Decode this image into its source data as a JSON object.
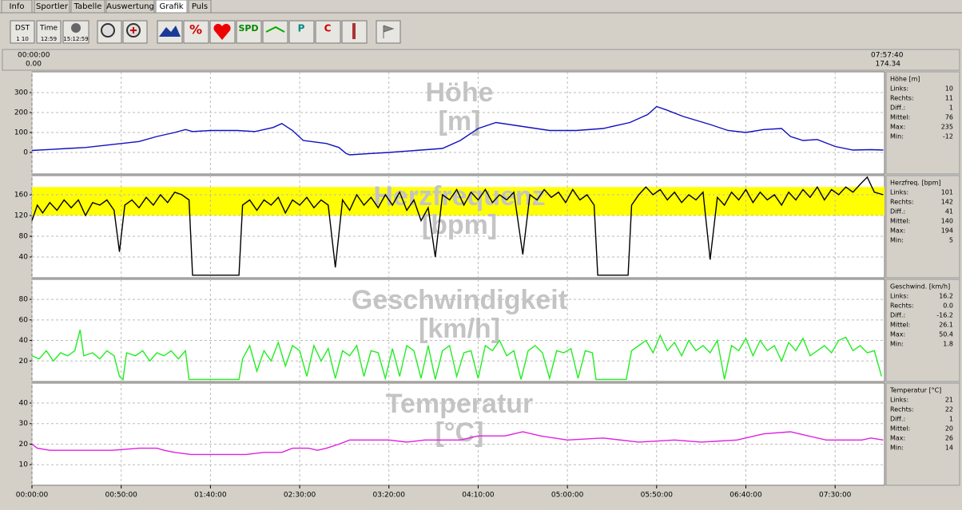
{
  "tabs": [
    "Info",
    "Sportler",
    "Tabelle",
    "Auswertung",
    "Grafik",
    "Puls"
  ],
  "toolbar": {
    "dst": "DST",
    "dst_sub": "1  10",
    "time": "Time",
    "time_sub": "12:59",
    "clock_sub": "15:12:59",
    "percent": "%",
    "spd": "SPD",
    "p": "P",
    "c": "C"
  },
  "range": {
    "start_time": "00:00:00",
    "start_value": "0.00",
    "end_time": "07:57:40",
    "end_value": "174.34"
  },
  "x_axis": {
    "xlim": [
      0,
      477.67
    ],
    "xticks": [
      {
        "value": 0,
        "label": "00:00:00"
      },
      {
        "value": 50,
        "label": "00:50:00"
      },
      {
        "value": 100,
        "label": "01:40:00"
      },
      {
        "value": 150,
        "label": "02:30:00"
      },
      {
        "value": 200,
        "label": "03:20:00"
      },
      {
        "value": 250,
        "label": "04:10:00"
      },
      {
        "value": 300,
        "label": "05:00:00"
      },
      {
        "value": 350,
        "label": "05:50:00"
      },
      {
        "value": 400,
        "label": "06:40:00"
      },
      {
        "value": 450,
        "label": "07:30:00"
      }
    ]
  },
  "chart_data": [
    {
      "type": "line",
      "title": "Höhe",
      "unit": "[m]",
      "color": "#1010c0",
      "grid": true,
      "ylim": [
        -108,
        404
      ],
      "yticks": [
        0,
        100,
        200,
        300
      ],
      "x": [
        0,
        10,
        20,
        30,
        40,
        50,
        60,
        70,
        80,
        86,
        90,
        100,
        115,
        125,
        135,
        140,
        146,
        152,
        165,
        172,
        176,
        178,
        190,
        200,
        215,
        230,
        240,
        250,
        260,
        275,
        290,
        305,
        320,
        335,
        345,
        350,
        355,
        365,
        380,
        390,
        400,
        410,
        420,
        425,
        432,
        440,
        450,
        460,
        470,
        477
      ],
      "values": [
        10,
        15,
        20,
        25,
        35,
        45,
        55,
        80,
        100,
        115,
        105,
        110,
        110,
        105,
        125,
        145,
        110,
        60,
        45,
        25,
        -5,
        -12,
        -5,
        0,
        10,
        20,
        60,
        120,
        150,
        130,
        110,
        110,
        120,
        150,
        190,
        230,
        215,
        180,
        140,
        110,
        100,
        115,
        120,
        80,
        60,
        65,
        30,
        12,
        14,
        12
      ],
      "stats": {
        "header": "Höhe [m]",
        "rows": [
          [
            "Links:",
            "10"
          ],
          [
            "Rechts:",
            "11"
          ],
          [
            "Diff.:",
            "1"
          ],
          [
            "Mittel:",
            "76"
          ],
          [
            "Max:",
            "235"
          ],
          [
            "Min:",
            "-12"
          ]
        ]
      }
    },
    {
      "type": "line",
      "title": "Herzfrequenz",
      "unit": "[bpm]",
      "color": "#000000",
      "grid": true,
      "ylim": [
        0,
        197
      ],
      "yticks": [
        40,
        80,
        120,
        160
      ],
      "band": {
        "range": [
          120,
          175
        ],
        "color": "#ffff00"
      },
      "x": [
        0,
        3,
        6,
        10,
        14,
        18,
        22,
        26,
        30,
        34,
        38,
        42,
        46,
        49,
        52,
        56,
        60,
        64,
        68,
        72,
        76,
        80,
        84,
        88,
        90,
        116,
        118,
        122,
        126,
        130,
        134,
        138,
        142,
        146,
        150,
        154,
        158,
        162,
        166,
        170,
        174,
        178,
        182,
        186,
        190,
        194,
        198,
        202,
        206,
        210,
        214,
        218,
        222,
        226,
        230,
        234,
        238,
        242,
        246,
        250,
        254,
        258,
        262,
        266,
        270,
        275,
        279,
        283,
        287,
        291,
        295,
        299,
        303,
        307,
        311,
        315,
        317,
        334,
        336,
        340,
        344,
        348,
        352,
        356,
        360,
        364,
        368,
        372,
        376,
        380,
        384,
        388,
        392,
        396,
        400,
        404,
        408,
        412,
        416,
        420,
        424,
        428,
        432,
        436,
        440,
        444,
        448,
        452,
        456,
        460,
        464,
        468,
        472,
        477
      ],
      "values": [
        110,
        140,
        125,
        145,
        130,
        150,
        135,
        150,
        120,
        145,
        140,
        150,
        130,
        50,
        140,
        150,
        135,
        155,
        140,
        160,
        145,
        165,
        160,
        150,
        5,
        5,
        140,
        150,
        130,
        150,
        140,
        155,
        125,
        150,
        140,
        155,
        135,
        150,
        140,
        20,
        150,
        130,
        160,
        140,
        155,
        135,
        160,
        140,
        165,
        130,
        150,
        110,
        135,
        40,
        160,
        150,
        170,
        140,
        165,
        150,
        170,
        145,
        160,
        150,
        165,
        45,
        160,
        150,
        170,
        155,
        165,
        145,
        170,
        150,
        160,
        140,
        5,
        5,
        140,
        160,
        175,
        160,
        170,
        150,
        165,
        145,
        160,
        150,
        165,
        35,
        155,
        140,
        165,
        150,
        170,
        145,
        165,
        150,
        160,
        140,
        165,
        150,
        170,
        155,
        175,
        150,
        170,
        160,
        175,
        165,
        180,
        194,
        165,
        160
      ],
      "stats": {
        "header": "Herzfreq. [bpm]",
        "rows": [
          [
            "Links:",
            "101"
          ],
          [
            "Rechts:",
            "142"
          ],
          [
            "Diff.:",
            "41"
          ],
          [
            "Mittel:",
            "140"
          ],
          [
            "Max:",
            "194"
          ],
          [
            "Min:",
            "5"
          ]
        ]
      }
    },
    {
      "type": "line",
      "title": "Geschwindigkeit",
      "unit": "[km/h]",
      "color": "#22ee22",
      "grid": true,
      "ylim": [
        0,
        99.5
      ],
      "yticks": [
        20,
        40,
        60,
        80
      ],
      "x": [
        0,
        4,
        8,
        12,
        16,
        20,
        24,
        27,
        29,
        34,
        38,
        42,
        46,
        49,
        51,
        53,
        58,
        62,
        66,
        70,
        74,
        78,
        82,
        86,
        88,
        116,
        118,
        122,
        126,
        130,
        134,
        138,
        142,
        146,
        150,
        154,
        158,
        162,
        166,
        170,
        174,
        178,
        182,
        186,
        190,
        194,
        198,
        202,
        206,
        210,
        214,
        218,
        222,
        226,
        230,
        234,
        238,
        242,
        246,
        250,
        254,
        258,
        262,
        266,
        270,
        274,
        278,
        282,
        286,
        290,
        294,
        298,
        302,
        306,
        310,
        314,
        316,
        333,
        336,
        340,
        344,
        348,
        352,
        356,
        360,
        364,
        368,
        372,
        376,
        380,
        384,
        388,
        392,
        396,
        400,
        404,
        408,
        412,
        416,
        420,
        424,
        428,
        432,
        436,
        440,
        444,
        448,
        452,
        456,
        460,
        464,
        468,
        472,
        476
      ],
      "values": [
        25,
        22,
        30,
        20,
        28,
        25,
        30,
        50.4,
        25,
        28,
        22,
        30,
        25,
        5,
        1.8,
        28,
        25,
        30,
        20,
        28,
        25,
        30,
        22,
        30,
        2,
        2,
        22,
        35,
        10,
        30,
        20,
        38,
        15,
        35,
        30,
        5,
        35,
        20,
        32,
        3,
        30,
        25,
        35,
        5,
        30,
        28,
        3,
        32,
        5,
        35,
        30,
        3,
        35,
        2,
        30,
        35,
        5,
        28,
        30,
        3,
        35,
        30,
        40,
        25,
        30,
        2,
        30,
        35,
        28,
        3,
        30,
        28,
        32,
        3,
        30,
        28,
        2,
        2,
        30,
        35,
        40,
        28,
        45,
        30,
        38,
        25,
        40,
        30,
        35,
        28,
        40,
        2,
        35,
        30,
        42,
        25,
        40,
        30,
        35,
        20,
        38,
        30,
        42,
        25,
        30,
        35,
        28,
        40,
        43,
        30,
        35,
        28,
        30,
        5
      ],
      "stats": {
        "header": "Geschwind. [km/h]",
        "rows": [
          [
            "Links:",
            "16.2"
          ],
          [
            "Rechts:",
            "0.0"
          ],
          [
            "Diff.:",
            "-16.2"
          ],
          [
            "Mittel:",
            "26.1"
          ],
          [
            "Max:",
            "50.4"
          ],
          [
            "Min:",
            "1.8"
          ]
        ]
      }
    },
    {
      "type": "line",
      "title": "Temperatur",
      "unit": "[°C]",
      "color": "#e020e0",
      "grid": true,
      "ylim": [
        0,
        49.7
      ],
      "yticks": [
        10,
        20,
        30,
        40
      ],
      "x": [
        0,
        3,
        10,
        30,
        45,
        60,
        70,
        74,
        80,
        89,
        120,
        130,
        140,
        146,
        155,
        160,
        165,
        172,
        178,
        200,
        210,
        220,
        240,
        250,
        265,
        275,
        285,
        300,
        320,
        340,
        360,
        375,
        395,
        410,
        425,
        435,
        445,
        465,
        470,
        477
      ],
      "values": [
        20,
        18,
        17,
        17,
        17,
        18,
        18,
        17,
        16,
        15,
        15,
        16,
        16,
        18,
        18,
        17,
        18,
        20,
        22,
        22,
        21,
        22,
        22,
        24,
        24,
        26,
        24,
        22,
        23,
        21,
        22,
        21,
        22,
        25,
        26,
        24,
        22,
        22,
        23,
        22
      ],
      "stats": {
        "header": "Temperatur [°C]",
        "rows": [
          [
            "Links:",
            "21"
          ],
          [
            "Rechts:",
            "22"
          ],
          [
            "Diff.:",
            "1"
          ],
          [
            "Mittel:",
            "20"
          ],
          [
            "Max:",
            "26"
          ],
          [
            "Min:",
            "14"
          ]
        ]
      }
    }
  ]
}
